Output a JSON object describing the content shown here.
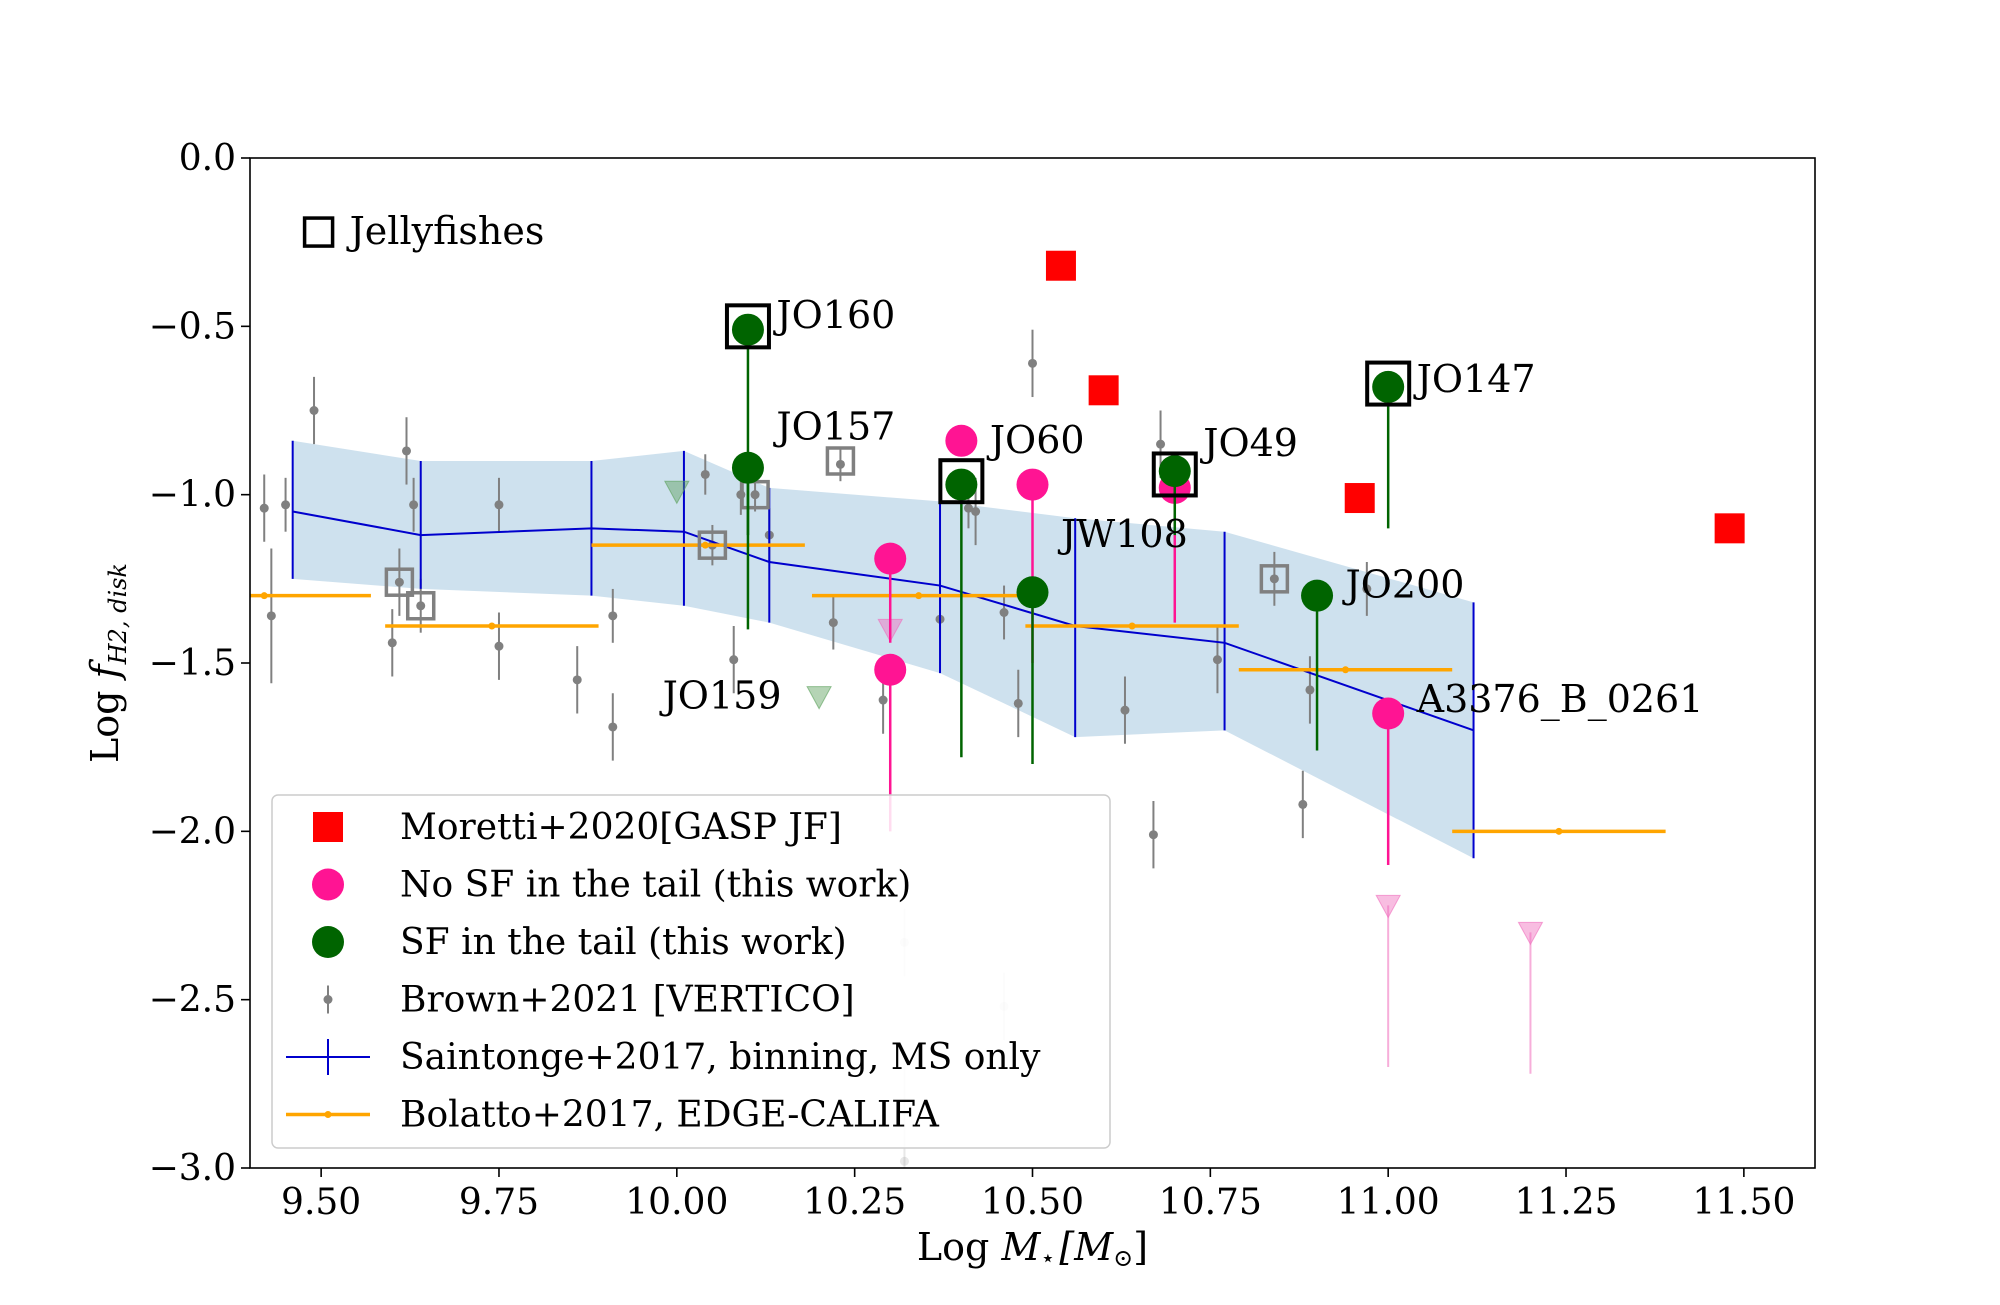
{
  "chart_data": {
    "type": "scatter",
    "title": "",
    "xlabel": {
      "prefix": "Log ",
      "var": "M",
      "sub": "⋆",
      "bracket": "[M",
      "bracket_sub": "⊙",
      "close": "]"
    },
    "ylabel": {
      "prefix": "Log ",
      "var": "f",
      "sub": "H2, disk"
    },
    "xlim": [
      9.4,
      11.6
    ],
    "ylim": [
      -3.0,
      0.0
    ],
    "x_ticks": [
      {
        "v": 9.5,
        "label": "9.50"
      },
      {
        "v": 9.75,
        "label": "9.75"
      },
      {
        "v": 10.0,
        "label": "10.00"
      },
      {
        "v": 10.25,
        "label": "10.25"
      },
      {
        "v": 10.5,
        "label": "10.50"
      },
      {
        "v": 10.75,
        "label": "10.75"
      },
      {
        "v": 11.0,
        "label": "11.00"
      },
      {
        "v": 11.25,
        "label": "11.25"
      },
      {
        "v": 11.5,
        "label": "11.50"
      }
    ],
    "y_ticks": [
      {
        "v": 0.0,
        "label": "0.0"
      },
      {
        "v": -0.5,
        "label": "−0.5"
      },
      {
        "v": -1.0,
        "label": "−1.0"
      },
      {
        "v": -1.5,
        "label": "−1.5"
      },
      {
        "v": -2.0,
        "label": "−2.0"
      },
      {
        "v": -2.5,
        "label": "−2.5"
      },
      {
        "v": -3.0,
        "label": "−3.0"
      }
    ],
    "colors": {
      "moretti": "#ff0000",
      "no_sf": "#ff1493",
      "sf": "#006400",
      "brown": "#808080",
      "saintonge_line": "#0000cd",
      "saintonge_band": "#a6c8e0",
      "bolatto": "#ffa500",
      "jelly_box": "#000000",
      "gray_box": "#808080"
    },
    "series": [
      {
        "key": "moretti",
        "name": "Moretti+2020[GASP JF]",
        "marker": "square",
        "points": [
          {
            "x": 10.54,
            "y": -0.32
          },
          {
            "x": 10.6,
            "y": -0.69
          },
          {
            "x": 10.96,
            "y": -1.01
          },
          {
            "x": 11.48,
            "y": -1.1
          }
        ]
      },
      {
        "key": "no_sf",
        "name": "No SF in the tail (this work)",
        "marker": "circle",
        "points": [
          {
            "x": 10.4,
            "y": -0.84
          },
          {
            "x": 10.5,
            "y": -0.97,
            "ylow": -1.5
          },
          {
            "x": 10.3,
            "y": -1.19,
            "ylow": -1.44
          },
          {
            "x": 10.3,
            "y": -1.52,
            "ylow": -2.0
          },
          {
            "x": 10.7,
            "y": -0.98,
            "ylow": -1.38
          },
          {
            "x": 11.0,
            "y": -1.65,
            "ylow": -2.1
          }
        ]
      },
      {
        "key": "sf",
        "name": "SF in the tail (this work)",
        "marker": "circle",
        "points": [
          {
            "x": 10.1,
            "y": -0.51,
            "ylow": -1.4
          },
          {
            "x": 10.1,
            "y": -0.92,
            "ylow": -1.12
          },
          {
            "x": 10.4,
            "y": -0.97,
            "ylow": -1.78
          },
          {
            "x": 10.5,
            "y": -1.29,
            "ylow": -1.8
          },
          {
            "x": 10.7,
            "y": -0.93,
            "ylow": -1.12
          },
          {
            "x": 10.9,
            "y": -1.3,
            "ylow": -1.76
          },
          {
            "x": 11.0,
            "y": -0.68,
            "ylow": -1.1
          }
        ]
      },
      {
        "key": "brown",
        "name": "Brown+2021 [VERTICO]",
        "marker": "point",
        "points": [
          {
            "x": 9.42,
            "y": -1.04,
            "err": 0.1
          },
          {
            "x": 9.43,
            "y": -1.36,
            "err": 0.2
          },
          {
            "x": 9.45,
            "y": -1.03,
            "err": 0.08
          },
          {
            "x": 9.49,
            "y": -0.75,
            "err": 0.1
          },
          {
            "x": 9.6,
            "y": -1.44,
            "err": 0.1
          },
          {
            "x": 9.61,
            "y": -1.26,
            "err": 0.1
          },
          {
            "x": 9.62,
            "y": -0.87,
            "err": 0.1
          },
          {
            "x": 9.63,
            "y": -1.03,
            "err": 0.08
          },
          {
            "x": 9.64,
            "y": -1.33,
            "err": 0.08
          },
          {
            "x": 9.75,
            "y": -1.03,
            "err": 0.08
          },
          {
            "x": 9.75,
            "y": -1.45,
            "err": 0.1
          },
          {
            "x": 9.86,
            "y": -1.55,
            "err": 0.1
          },
          {
            "x": 9.91,
            "y": -1.36,
            "err": 0.08
          },
          {
            "x": 9.91,
            "y": -1.69,
            "err": 0.1
          },
          {
            "x": 10.04,
            "y": -0.94,
            "err": 0.06
          },
          {
            "x": 10.05,
            "y": -1.15,
            "err": 0.06
          },
          {
            "x": 10.08,
            "y": -1.49,
            "err": 0.1
          },
          {
            "x": 10.09,
            "y": -1.0,
            "err": 0.06
          },
          {
            "x": 10.11,
            "y": -1.0,
            "err": 0.05
          },
          {
            "x": 10.13,
            "y": -1.12,
            "err": 0.08
          },
          {
            "x": 10.23,
            "y": -0.91,
            "err": 0.05
          },
          {
            "x": 10.22,
            "y": -1.38,
            "err": 0.08
          },
          {
            "x": 10.29,
            "y": -1.61,
            "err": 0.1
          },
          {
            "x": 10.37,
            "y": -1.37,
            "err": 0.06
          },
          {
            "x": 10.41,
            "y": -1.04,
            "err": 0.06
          },
          {
            "x": 10.42,
            "y": -1.05,
            "err": 0.1
          },
          {
            "x": 10.46,
            "y": -1.35,
            "err": 0.08
          },
          {
            "x": 10.48,
            "y": -1.62,
            "err": 0.1
          },
          {
            "x": 10.5,
            "y": -0.61,
            "err": 0.1
          },
          {
            "x": 10.63,
            "y": -1.64,
            "err": 0.1
          },
          {
            "x": 10.68,
            "y": -0.85,
            "err": 0.1
          },
          {
            "x": 10.76,
            "y": -1.49,
            "err": 0.1
          },
          {
            "x": 10.84,
            "y": -1.25,
            "err": 0.08
          },
          {
            "x": 10.88,
            "y": -1.92,
            "err": 0.1
          },
          {
            "x": 10.89,
            "y": -1.58,
            "err": 0.1
          },
          {
            "x": 10.67,
            "y": -2.01,
            "err": 0.1
          },
          {
            "x": 10.97,
            "y": -1.28,
            "err": 0.08
          }
        ]
      },
      {
        "key": "brown_faint",
        "name": "",
        "marker": "point",
        "points": [
          {
            "x": 10.32,
            "y": -2.33,
            "err": 0.1
          },
          {
            "x": 10.32,
            "y": -2.98,
            "err": 0.3
          },
          {
            "x": 10.46,
            "y": -2.52,
            "err": 0.1
          }
        ]
      },
      {
        "key": "saintonge",
        "name": "Saintonge+2017, binning, MS only",
        "marker": "line",
        "points": [
          {
            "x": 9.46,
            "y": -1.05,
            "lo": -1.25,
            "hi": -0.84
          },
          {
            "x": 9.64,
            "y": -1.12,
            "lo": -1.28,
            "hi": -0.9
          },
          {
            "x": 9.88,
            "y": -1.1,
            "lo": -1.3,
            "hi": -0.9
          },
          {
            "x": 10.01,
            "y": -1.11,
            "lo": -1.33,
            "hi": -0.87
          },
          {
            "x": 10.13,
            "y": -1.2,
            "lo": -1.38,
            "hi": -0.98
          },
          {
            "x": 10.37,
            "y": -1.27,
            "lo": -1.53,
            "hi": -1.02
          },
          {
            "x": 10.56,
            "y": -1.39,
            "lo": -1.72,
            "hi": -1.07
          },
          {
            "x": 10.77,
            "y": -1.44,
            "lo": -1.7,
            "hi": -1.11
          },
          {
            "x": 11.12,
            "y": -1.7,
            "lo": -2.08,
            "hi": -1.32
          }
        ]
      },
      {
        "key": "bolatto",
        "name": "Bolatto+2017, EDGE-CALIFA",
        "marker": "hbar",
        "points": [
          {
            "x": 9.42,
            "xlo": 9.32,
            "xhi": 9.57,
            "y": -1.3
          },
          {
            "x": 9.74,
            "xlo": 9.59,
            "xhi": 9.89,
            "y": -1.39
          },
          {
            "x": 10.04,
            "xlo": 9.88,
            "xhi": 10.18,
            "y": -1.15
          },
          {
            "x": 10.34,
            "xlo": 10.19,
            "xhi": 10.49,
            "y": -1.3
          },
          {
            "x": 10.64,
            "xlo": 10.49,
            "xhi": 10.79,
            "y": -1.39
          },
          {
            "x": 10.94,
            "xlo": 10.79,
            "xhi": 11.09,
            "y": -1.52
          },
          {
            "x": 11.24,
            "xlo": 11.09,
            "xhi": 11.39,
            "y": -2.0
          }
        ]
      }
    ],
    "upper_limits": [
      {
        "x": 10.0,
        "y": -0.99,
        "color": "green"
      },
      {
        "x": 10.2,
        "y": -1.6,
        "color": "green"
      },
      {
        "x": 10.3,
        "y": -1.4,
        "color": "pink"
      },
      {
        "x": 11.0,
        "y": -2.22,
        "color": "pink",
        "ylow": -2.7
      },
      {
        "x": 11.2,
        "y": -2.3,
        "color": "pink",
        "ylow": -2.72
      }
    ],
    "jellyfish_boxes": [
      {
        "x": 10.1,
        "y": -0.5
      },
      {
        "x": 10.4,
        "y": -0.96
      },
      {
        "x": 10.7,
        "y": -0.94
      },
      {
        "x": 11.0,
        "y": -0.67
      }
    ],
    "gray_boxes": [
      {
        "x": 9.61,
        "y": -1.26
      },
      {
        "x": 9.64,
        "y": -1.33
      },
      {
        "x": 10.05,
        "y": -1.15
      },
      {
        "x": 10.11,
        "y": -1.0
      },
      {
        "x": 10.23,
        "y": -0.9
      },
      {
        "x": 10.84,
        "y": -1.25
      }
    ],
    "annotations": [
      {
        "text": "Jellyfishes",
        "x": 9.54,
        "y": -0.22,
        "anchor": "start",
        "box": true
      },
      {
        "text": "JO160",
        "x": 10.14,
        "y": -0.47,
        "anchor": "start"
      },
      {
        "text": "JO157",
        "x": 10.14,
        "y": -0.8,
        "anchor": "start"
      },
      {
        "text": "JO60",
        "x": 10.44,
        "y": -0.84,
        "anchor": "start"
      },
      {
        "text": "JO49",
        "x": 10.74,
        "y": -0.85,
        "anchor": "start"
      },
      {
        "text": "JW108",
        "x": 10.54,
        "y": -1.12,
        "anchor": "start"
      },
      {
        "text": "JO147",
        "x": 11.04,
        "y": -0.66,
        "anchor": "start"
      },
      {
        "text": "JO200",
        "x": 10.94,
        "y": -1.27,
        "anchor": "start"
      },
      {
        "text": "JO159",
        "x": 9.98,
        "y": -1.6,
        "anchor": "start"
      },
      {
        "text": "A3376_B_0261",
        "x": 11.04,
        "y": -1.61,
        "anchor": "start"
      }
    ],
    "legend": {
      "location": "lower-left",
      "entries": [
        {
          "key": "moretti",
          "label": "Moretti+2020[GASP JF]"
        },
        {
          "key": "no_sf",
          "label": "No SF in the tail (this work)"
        },
        {
          "key": "sf",
          "label": "SF in the tail (this work)"
        },
        {
          "key": "brown",
          "label": "Brown+2021 [VERTICO]"
        },
        {
          "key": "saintonge",
          "label": "Saintonge+2017, binning, MS only"
        },
        {
          "key": "bolatto",
          "label": "Bolatto+2017, EDGE-CALIFA"
        }
      ]
    }
  }
}
